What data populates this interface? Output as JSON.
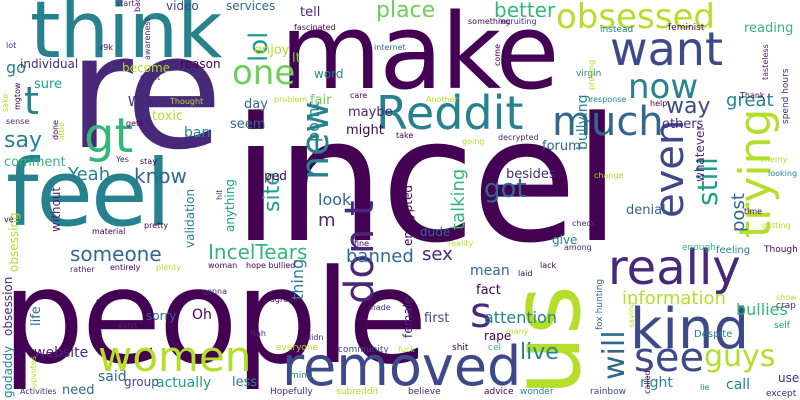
{
  "palette": {
    "dark_purple": "#440154",
    "purple": "#482878",
    "indigo": "#3e4989",
    "blue": "#31688e",
    "teal": "#26828e",
    "green_teal": "#1f9e89",
    "green": "#35b779",
    "lime": "#6ece58",
    "yellow_green": "#b5de2b",
    "yellow": "#fde725"
  },
  "words": {
    "incel": "incel",
    "people": "people",
    "re": "re",
    "make": "make",
    "feel": "feel",
    "think": "think",
    "us": "us",
    "removed": "removed",
    "kind": "kind",
    "really": "really",
    "women": "women",
    "want": "want",
    "Reddit": "Reddit",
    "obsessed": "obsessed",
    "trying": "trying",
    "new": "new",
    "even": "even",
    "much": "much",
    "dont": "don t",
    "one": "one",
    "now": "now",
    "gt": "gt",
    "t": "t",
    "s": "s",
    "see": "see",
    "guys": "guys",
    "will": "will",
    "still": "still",
    "lol": "lol",
    "place": "place",
    "better": "better",
    "great": "great",
    "way": "way",
    "know": "know",
    "got": "got",
    "Yeah": "Yeah",
    "say": "say",
    "IncelTears": "IncelTears",
    "someone": "someone",
    "banned": "banned",
    "sex": "sex",
    "live": "live",
    "information": "information",
    "bullies": "bullies",
    "attention": "attention",
    "post": "post",
    "site": "site",
    "talking": "talking",
    "point": "point",
    "thing": "thing",
    "look": "look",
    "m": "m",
    "Well": "Well",
    "comment": "comment",
    "go": "go",
    "sure": "sure",
    "toxic": "toxic",
    "ban": "ban",
    "seem": "seem",
    "day": "day",
    "enjoy": "enjoy",
    "tell": "tell",
    "lt": "lt",
    "fair": "fair",
    "maybe": "maybe",
    "might": "might",
    "bullying": "bullying",
    "others": "others",
    "forum": "forum",
    "besides": "besides",
    "whatever": "whatever",
    "denial": "denial",
    "encrypted": "encrypted",
    "dude": "dude",
    "give": "give",
    "mean": "mean",
    "fact": "fact",
    "rape": "rape",
    "first": "first",
    "female": "female",
    "right": "right",
    "call": "call",
    "use": "use",
    "said": "said",
    "group": "group",
    "actually": "actually",
    "less": "less",
    "need": "need",
    "website": "website",
    "life": "life",
    "obsession": "obsession",
    "godaddy": "godaddy",
    "sorry": "sorry",
    "Oh": "Oh",
    "validation": "validation",
    "anything": "anything",
    "obsessing": "obsessing",
    "without": "without",
    "video": "video",
    "services": "services",
    "reason": "reason",
    "become": "become",
    "word": "word",
    "individual": "individual",
    "reading": "reading",
    "raped": "raped",
    "spend_hours": "spend hours",
    "feeling": "feeling",
    "enough": "enough",
    "Though": "Though",
    "Despite": "Despite",
    "self": "self",
    "crap": "crap",
    "except": "except",
    "show": "show",
    "fox_hunting": "fox hunting",
    "shit": "shit",
    "cel": "cel",
    "community": "community",
    "everyone": "everyone",
    "mind": "mind",
    "Hopefully": "Hopefully",
    "subreddit": "subreddit",
    "believe": "believe",
    "advice": "advice",
    "wonder": "wonder",
    "rainbow": "rainbow",
    "lie": "lie",
    "Activities": "Activities",
    "lot": "lot",
    "r9k": "r9k",
    "start": "start",
    "bad": "bad",
    "must": "must",
    "Thought": "Thought",
    "care": "care",
    "problem": "problem",
    "Another": "Another",
    "instead": "instead",
    "feminist": "feminist",
    "recruiting": "recruiting",
    "something": "something",
    "fascinated": "fascinated",
    "internet": "internet",
    "virgin": "virgin",
    "response": "response",
    "help": "help",
    "Thank": "Thank",
    "enemy": "enemy",
    "looking": "looking",
    "time": "time",
    "getting": "getting",
    "check": "check",
    "reality": "reality",
    "among": "among",
    "lack": "lack",
    "fine": "fine",
    "material": "material",
    "pretty": "pretty",
    "rather": "rather",
    "entirely": "entirely",
    "plenty": "plenty",
    "woman": "woman",
    "hope_bullied": "hope bullied",
    "gonna": "gonna",
    "agree": "agree",
    "didn": "didn",
    "made": "made",
    "fuck": "fuck",
    "laid": "laid",
    "many": "many",
    "stay": "stay",
    "Yes": "Yes",
    "gets": "gets",
    "change": "change",
    "going": "going",
    "decrypted": "decrypted",
    "come": "come",
    "proving": "proving",
    "awareness": "awareness",
    "important": "important",
    "exist": "exist",
    "saying": "saying",
    "called": "called",
    "sense": "sense",
    "mgtow": "mgtow",
    "ve": "ve",
    "done": "done",
    "little": "little",
    "tasteless": "tasteless",
    "upvotes": "upvotes",
    "sake": "sake",
    "hit": "hit",
    "Nah": "Nah",
    "take": "take"
  }
}
